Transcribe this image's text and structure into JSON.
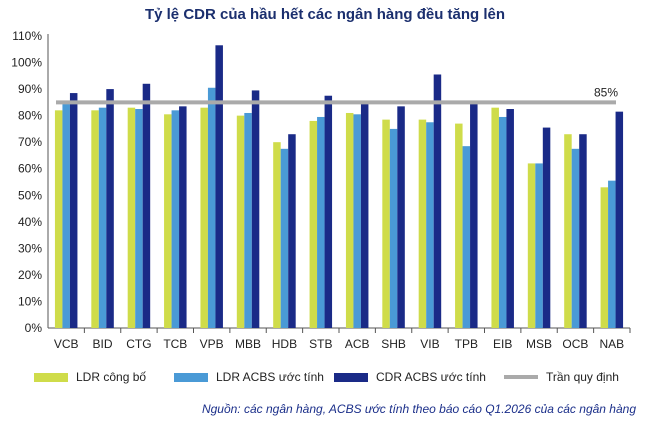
{
  "title": "Tỷ lệ CDR của hầu hết các ngân hàng đều tăng lên",
  "source": "Nguồn: các ngân hàng, ACBS ước tính theo báo cáo Q1.2026 của các ngân hàng",
  "chart_data": {
    "type": "bar",
    "categories": [
      "VCB",
      "BID",
      "CTG",
      "TCB",
      "VPB",
      "MBB",
      "HDB",
      "STB",
      "ACB",
      "SHB",
      "VIB",
      "TPB",
      "EIB",
      "MSB",
      "OCB",
      "NAB"
    ],
    "series": [
      {
        "name": "LDR công bố",
        "color": "#cfdc4a",
        "values": [
          82,
          82,
          83,
          80.5,
          83,
          80,
          70,
          78,
          81,
          78.5,
          78.5,
          77,
          83,
          62,
          73,
          53
        ]
      },
      {
        "name": "LDR ACBS ước tính",
        "color": "#4a9ad6",
        "values": [
          84.5,
          83,
          82.5,
          82,
          90.5,
          81,
          67.5,
          79.5,
          80.5,
          75,
          77.5,
          68.5,
          79.5,
          62,
          67.5,
          55.5
        ]
      },
      {
        "name": "CDR ACBS ước tính",
        "color": "#1a2a87",
        "values": [
          88.5,
          90,
          92,
          83.5,
          106.5,
          89.5,
          73,
          87.5,
          84.5,
          83.5,
          95.5,
          84.5,
          82.5,
          75.5,
          73,
          81.5
        ]
      }
    ],
    "reference_line": {
      "name": "Trần quy định",
      "value": 85,
      "label": "85%",
      "color": "#aaaaaa"
    },
    "ylim": [
      0,
      110
    ],
    "y_ticks": [
      "0%",
      "10%",
      "20%",
      "30%",
      "40%",
      "50%",
      "60%",
      "70%",
      "80%",
      "90%",
      "100%",
      "110%"
    ],
    "grid": false,
    "legend_position": "bottom"
  }
}
